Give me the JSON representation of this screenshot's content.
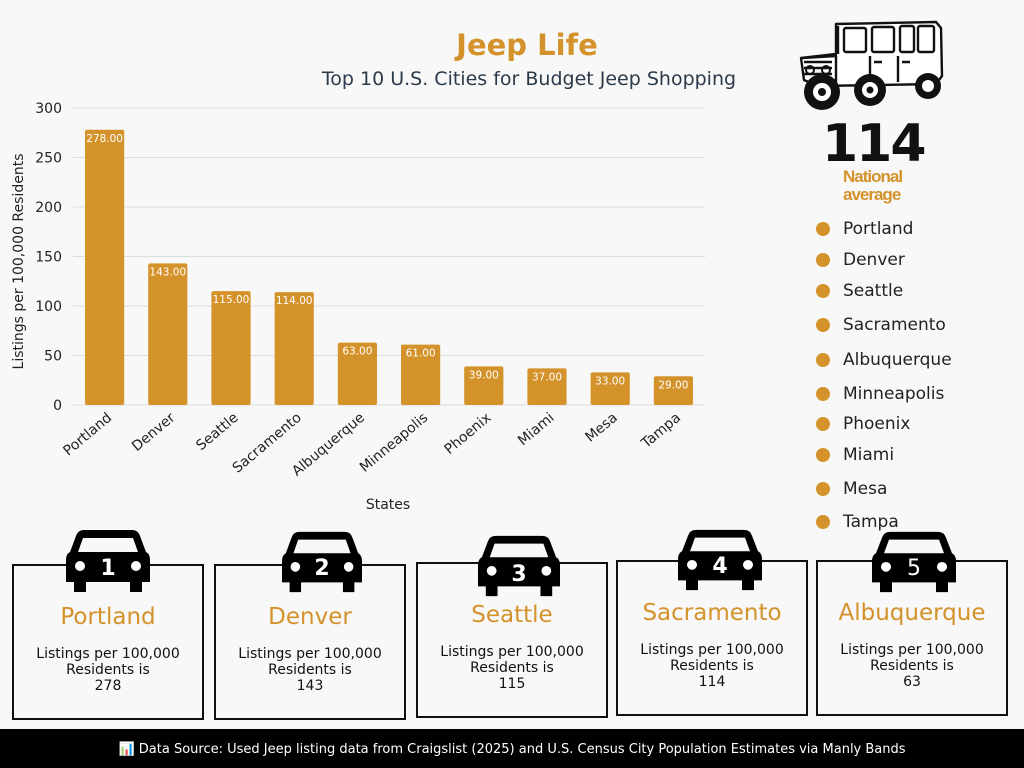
{
  "header": {
    "title": "Jeep Life",
    "subtitle": "Top 10 U.S. Cities for Budget Jeep Shopping"
  },
  "national": {
    "value": "114",
    "label_line1": "National",
    "label_line2": "average"
  },
  "colors": {
    "accent": "#d4922a",
    "dark": "#111111",
    "background": "#f8f8f8"
  },
  "chart_data": {
    "type": "bar",
    "categories": [
      "Portland",
      "Denver",
      "Seattle",
      "Sacramento",
      "Albuquerque",
      "Minneapolis",
      "Phoenix",
      "Miami",
      "Mesa",
      "Tampa"
    ],
    "values": [
      278,
      143,
      115,
      114,
      63,
      61,
      39,
      37,
      33,
      29
    ],
    "value_labels": [
      "278.00",
      "143.00",
      "115.00",
      "114.00",
      "63.00",
      "61.00",
      "39.00",
      "37.00",
      "33.00",
      "29.00"
    ],
    "xlabel": "States",
    "ylabel": "Listings per 100,000 Residents",
    "ylim": [
      0,
      300
    ],
    "yticks": [
      0,
      50,
      100,
      150,
      200,
      250,
      300
    ],
    "grid": true
  },
  "legend": {
    "items": [
      "Portland",
      "Denver",
      "Seattle",
      "Sacramento",
      "Albuquerque",
      "Minneapolis",
      "Phoenix",
      "Miami",
      "Mesa",
      "Tampa"
    ]
  },
  "cards": [
    {
      "rank": "1",
      "city": "Portland",
      "line1": "Listings per 100,000",
      "line2": "Residents is",
      "value": "278"
    },
    {
      "rank": "2",
      "city": "Denver",
      "line1": "Listings per 100,000",
      "line2": "Residents is",
      "value": "143"
    },
    {
      "rank": "3",
      "city": "Seattle",
      "line1": "Listings per 100,000",
      "line2": "Residents is",
      "value": "115"
    },
    {
      "rank": "4",
      "city": "Sacramento",
      "line1": "Listings per 100,000",
      "line2": "Residents is",
      "value": "114"
    },
    {
      "rank": "5",
      "city": "Albuquerque",
      "line1": "Listings per 100,000",
      "line2": "Residents is",
      "value": "63"
    }
  ],
  "footer": {
    "icon": "bar-chart-icon",
    "icon_glyph": "📊",
    "text": "Data Source: Used Jeep listing data from Craigslist (2025) and U.S. Census City Population Estimates via Manly Bands"
  }
}
